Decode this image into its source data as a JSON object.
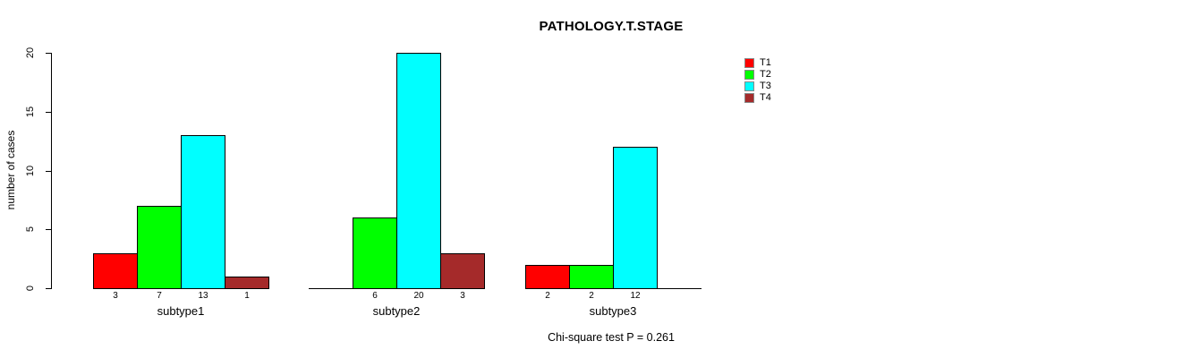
{
  "page": {
    "background_color": "#FFFFFF"
  },
  "chart_data": {
    "type": "bar",
    "title": "PATHOLOGY.T.STAGE",
    "ylabel": "number of cases",
    "xlabel": "",
    "ylim": [
      0,
      20
    ],
    "yticks": [
      "0",
      "5",
      "10",
      "15",
      "20"
    ],
    "grid": false,
    "legend_position": "right",
    "categories": [
      "subtype1",
      "subtype2",
      "subtype3"
    ],
    "series": [
      {
        "name": "T1",
        "color": "#FF0000",
        "values": [
          3,
          0,
          2
        ]
      },
      {
        "name": "T2",
        "color": "#00FF00",
        "values": [
          7,
          6,
          2
        ]
      },
      {
        "name": "T3",
        "color": "#00FFFF",
        "values": [
          13,
          20,
          12
        ]
      },
      {
        "name": "T4",
        "color": "#A52A2A",
        "values": [
          1,
          3,
          0
        ]
      }
    ],
    "value_labels_under_bars": [
      [
        "3",
        "7",
        "13",
        "1"
      ],
      [
        "",
        "6",
        "20",
        "3"
      ],
      [
        "2",
        "2",
        "12",
        ""
      ]
    ],
    "annotation": "Chi-square test P = 0.261"
  }
}
